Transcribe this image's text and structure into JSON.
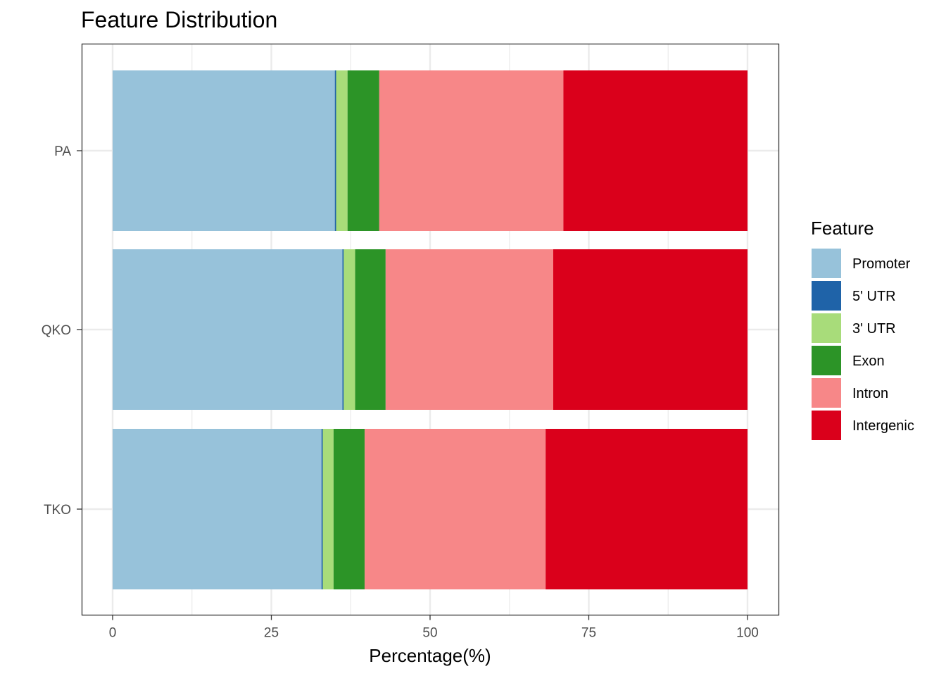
{
  "chart_data": {
    "type": "bar",
    "orientation": "horizontal",
    "stacked": true,
    "title": "Feature Distribution",
    "xlabel": "Percentage(%)",
    "ylabel": "",
    "xlim": [
      0,
      100
    ],
    "x_ticks": [
      "0",
      "25",
      "50",
      "75",
      "100"
    ],
    "grid": true,
    "legend_position": "right",
    "legend_title": "Feature",
    "categories": [
      "PA",
      "QKO",
      "TKO"
    ],
    "series": [
      {
        "name": "Promoter",
        "color": "#97C2DA",
        "values": [
          35.0,
          36.2,
          32.9
        ]
      },
      {
        "name": "5' UTR",
        "color": "#1F63A8",
        "values": [
          0.2,
          0.2,
          0.2
        ]
      },
      {
        "name": "3' UTR",
        "color": "#A8DC7A",
        "values": [
          1.8,
          1.8,
          1.7
        ]
      },
      {
        "name": "Exon",
        "color": "#2C9427",
        "values": [
          5.0,
          4.8,
          4.9
        ]
      },
      {
        "name": "Intron",
        "color": "#F78788",
        "values": [
          29.0,
          26.4,
          28.5
        ]
      },
      {
        "name": "Intergenic",
        "color": "#DA001B",
        "values": [
          29.0,
          30.6,
          31.8
        ]
      }
    ]
  }
}
